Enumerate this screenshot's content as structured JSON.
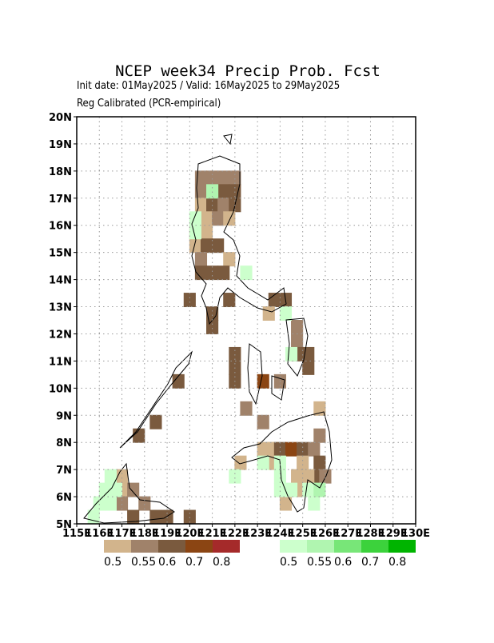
{
  "chart_data": {
    "type": "map",
    "title": "NCEP week34 Precip Prob. Fcst",
    "subtitle": "Init date: 01May2025 / Valid: 16May2025 to 29May2025",
    "subtitle2": "Reg Calibrated (PCR-empirical)",
    "xlim": [
      115,
      130
    ],
    "ylim": [
      5,
      20
    ],
    "xticks": [
      {
        "value": 115,
        "label": "115E"
      },
      {
        "value": 116,
        "label": "116E"
      },
      {
        "value": 117,
        "label": "117E"
      },
      {
        "value": 118,
        "label": "118E"
      },
      {
        "value": 119,
        "label": "119E"
      },
      {
        "value": 120,
        "label": "120E"
      },
      {
        "value": 121,
        "label": "121E"
      },
      {
        "value": 122,
        "label": "122E"
      },
      {
        "value": 123,
        "label": "123E"
      },
      {
        "value": 124,
        "label": "124E"
      },
      {
        "value": 125,
        "label": "125E"
      },
      {
        "value": 126,
        "label": "126E"
      },
      {
        "value": 127,
        "label": "127E"
      },
      {
        "value": 128,
        "label": "128E"
      },
      {
        "value": 129,
        "label": "129E"
      },
      {
        "value": 130,
        "label": "130E"
      }
    ],
    "yticks": [
      {
        "value": 5,
        "label": "5N"
      },
      {
        "value": 6,
        "label": "6N"
      },
      {
        "value": 7,
        "label": "7N"
      },
      {
        "value": 8,
        "label": "8N"
      },
      {
        "value": 9,
        "label": "9N"
      },
      {
        "value": 10,
        "label": "10N"
      },
      {
        "value": 11,
        "label": "11N"
      },
      {
        "value": 12,
        "label": "12N"
      },
      {
        "value": 13,
        "label": "13N"
      },
      {
        "value": 14,
        "label": "14N"
      },
      {
        "value": 15,
        "label": "15N"
      },
      {
        "value": 16,
        "label": "16N"
      },
      {
        "value": 17,
        "label": "17N"
      },
      {
        "value": 18,
        "label": "18N"
      },
      {
        "value": 19,
        "label": "19N"
      },
      {
        "value": 20,
        "label": "20N"
      }
    ],
    "grid": true,
    "dry_colorbar": {
      "levels": [
        0.5,
        0.55,
        0.6,
        0.7,
        0.8
      ],
      "colors": [
        "#d2b48c",
        "#a0826a",
        "#7a5a3e",
        "#8b4513",
        "#a52a2a"
      ]
    },
    "wet_colorbar": {
      "levels": [
        0.5,
        0.55,
        0.6,
        0.7,
        0.8
      ],
      "colors": [
        "#ccffcc",
        "#b0f5b0",
        "#78e678",
        "#3cd23c",
        "#00b400"
      ]
    },
    "dry_cells": {
      "lon": [
        120.5,
        121,
        121.5,
        122,
        120.5,
        121.5,
        122,
        120.5,
        121,
        121.5,
        122,
        120.75,
        121.25,
        121.75,
        120.25,
        120.75,
        120.25,
        120.75,
        121.25,
        120.5,
        121.75,
        120.5,
        121,
        121.5,
        120,
        121.75,
        123.75,
        124.25,
        121,
        123.5,
        121,
        124.75,
        122,
        124.75,
        125.25,
        122,
        124.75,
        122,
        124,
        123.25,
        125.25,
        122.5,
        123.25,
        125.75,
        123.75,
        123.25,
        119.5,
        118.5,
        117.75,
        125.75,
        123.5,
        124,
        124.5,
        125,
        125.5,
        125.75,
        122.25,
        123.75,
        125,
        125.75,
        124.75,
        125.25,
        125.5,
        124.25,
        124.75,
        126,
        117,
        117,
        117.5,
        118,
        117,
        117.5,
        118.5,
        119,
        120
      ],
      "lat": [
        17.75,
        17.75,
        17.75,
        17.75,
        17.25,
        17.25,
        17.25,
        16.75,
        16.75,
        16.75,
        16.75,
        16.25,
        16.25,
        16.25,
        15.75,
        15.75,
        15.25,
        15.25,
        15.25,
        14.75,
        14.75,
        14.25,
        14.25,
        14.25,
        13.25,
        13.25,
        13.25,
        13.25,
        12.75,
        12.75,
        12.25,
        12.25,
        11.25,
        11.75,
        11.25,
        10.75,
        11.25,
        10.25,
        10.25,
        10.25,
        10.75,
        9.25,
        8.75,
        9.25,
        7.75,
        7.75,
        10.25,
        8.75,
        8.25,
        8.25,
        7.75,
        7.75,
        7.75,
        7.75,
        7.75,
        7.25,
        7.25,
        7.25,
        7.25,
        6.75,
        6.75,
        6.75,
        6.25,
        5.75,
        6.25,
        6.75,
        6.75,
        6.25,
        6.25,
        5.75,
        5.75,
        5.25,
        5.25,
        5.25,
        5.25
      ],
      "values": [
        0.55,
        0.55,
        0.55,
        0.55,
        0.55,
        0.6,
        0.6,
        0.5,
        0.6,
        0.55,
        0.6,
        0.5,
        0.55,
        0.5,
        0.5,
        0.5,
        0.5,
        0.6,
        0.6,
        0.55,
        0.5,
        0.6,
        0.6,
        0.6,
        0.6,
        0.6,
        0.6,
        0.6,
        0.6,
        0.5,
        0.6,
        0.55,
        0.6,
        0.55,
        0.6,
        0.6,
        0.6,
        0.6,
        0.55,
        0.7,
        0.6,
        0.55,
        0.55,
        0.5,
        0.5,
        0.5,
        0.6,
        0.6,
        0.6,
        0.55,
        0.5,
        0.6,
        0.7,
        0.6,
        0.55,
        0.6,
        0.5,
        0.5,
        0.5,
        0.6,
        0.5,
        0.5,
        0.55,
        0.5,
        0.5,
        0.55,
        0.5,
        0.5,
        0.55,
        0.55,
        0.55,
        0.6,
        0.6,
        0.6,
        0.6
      ]
    },
    "wet_cells": {
      "lon": [
        121,
        120.25,
        120.25,
        122.5,
        124.25,
        124.5,
        124,
        123.25,
        122,
        124,
        124.5,
        125.25,
        125.5,
        125.75,
        124,
        116.5,
        116.25,
        116.75,
        116,
        116.5,
        115.75
      ],
      "lat": [
        17.25,
        16.25,
        15.75,
        14.25,
        12.75,
        11.25,
        7.25,
        7.25,
        6.75,
        6.75,
        6.25,
        6.25,
        5.75,
        6.25,
        6.25,
        6.75,
        6.25,
        6.25,
        5.75,
        5.75,
        5.25
      ],
      "values": [
        0.55,
        0.5,
        0.5,
        0.5,
        0.5,
        0.5,
        0.5,
        0.5,
        0.5,
        0.5,
        0.5,
        0.5,
        0.5,
        0.55,
        0.5,
        0.5,
        0.5,
        0.5,
        0.5,
        0.5,
        0.5
      ]
    }
  }
}
